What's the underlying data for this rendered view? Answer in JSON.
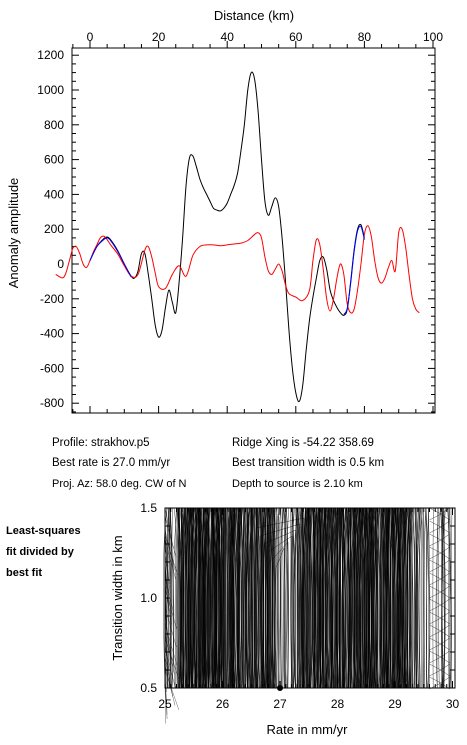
{
  "chart_data": [
    {
      "type": "line",
      "xlabel": "Distance (km)",
      "ylabel": "Anomaly amplitude",
      "xlim": [
        -10,
        100
      ],
      "ylim": [
        -900,
        1250
      ],
      "xticks": [
        0,
        20,
        40,
        60,
        80,
        100
      ],
      "yticks": [
        -800,
        -600,
        -400,
        -200,
        0,
        200,
        400,
        600,
        800,
        1000,
        1200
      ],
      "grid": false,
      "series": [
        {
          "color": "#000000",
          "x": [
            0,
            2,
            4,
            5,
            6,
            8,
            10,
            12,
            13,
            14,
            15,
            16,
            17,
            18,
            19,
            20,
            21,
            22,
            23,
            24,
            25,
            26,
            27,
            28,
            29,
            30,
            31,
            32,
            33,
            34,
            35,
            36,
            37,
            38,
            39,
            40,
            41,
            42,
            43,
            44,
            45,
            46,
            47,
            48,
            49,
            50,
            51,
            52,
            53,
            54,
            55,
            56,
            57,
            58,
            59,
            60,
            61,
            62,
            63,
            64,
            65,
            66,
            67,
            68,
            69,
            70,
            71,
            72,
            73,
            74,
            75,
            76,
            77,
            78,
            79,
            80
          ],
          "y": [
            20,
            100,
            145,
            155,
            140,
            80,
            0,
            -70,
            -80,
            -40,
            60,
            60,
            -60,
            -200,
            -350,
            -420,
            -380,
            -250,
            -150,
            -220,
            -280,
            -100,
            150,
            450,
            610,
            620,
            560,
            490,
            440,
            400,
            360,
            320,
            310,
            305,
            320,
            350,
            400,
            450,
            520,
            650,
            800,
            1000,
            1100,
            1060,
            880,
            600,
            360,
            280,
            330,
            380,
            330,
            150,
            -100,
            -380,
            -600,
            -740,
            -790,
            -700,
            -500,
            -320,
            -190,
            -80,
            20,
            40,
            -30,
            -150,
            -210,
            -250,
            -280,
            -295,
            -260,
            -100,
            80,
            200,
            225,
            150
          ]
        },
        {
          "color": "#ff0000",
          "x": [
            -10,
            -8,
            -7,
            -6,
            -5,
            -4,
            -3,
            -2,
            -1,
            0,
            1,
            2,
            3,
            4,
            5,
            6,
            8,
            10,
            12,
            14,
            16,
            17,
            18,
            19,
            20,
            22,
            24,
            26,
            28,
            30,
            32,
            34,
            36,
            38,
            40,
            42,
            44,
            46,
            48,
            49,
            50,
            51,
            52,
            53,
            54,
            55,
            56,
            57,
            58,
            60,
            62,
            64,
            65,
            66,
            67,
            68,
            69,
            70,
            71,
            72,
            73,
            74,
            75,
            76,
            77,
            78,
            79,
            80,
            81,
            82,
            83,
            84,
            85,
            86,
            87,
            88,
            89,
            90,
            91,
            92,
            93,
            94,
            95,
            96
          ],
          "y": [
            -60,
            -80,
            -50,
            20,
            90,
            100,
            60,
            0,
            -20,
            20,
            70,
            110,
            150,
            160,
            140,
            110,
            60,
            -10,
            -70,
            -60,
            80,
            100,
            40,
            -50,
            -130,
            -140,
            -60,
            -10,
            -70,
            50,
            100,
            110,
            110,
            105,
            110,
            115,
            120,
            135,
            170,
            180,
            150,
            40,
            -40,
            -60,
            -30,
            0,
            -40,
            -120,
            -170,
            -190,
            -210,
            -150,
            20,
            140,
            110,
            -30,
            -200,
            -270,
            -200,
            -80,
            0,
            -60,
            -230,
            -280,
            -260,
            -150,
            0,
            170,
            220,
            160,
            20,
            -80,
            -110,
            -80,
            -20,
            20,
            -40,
            180,
            200,
            100,
            -60,
            -200,
            -260,
            -280
          ]
        },
        {
          "color": "#0000ff",
          "x": [
            0,
            2,
            4,
            5,
            6,
            8,
            10,
            12
          ],
          "y": [
            20,
            100,
            140,
            150,
            135,
            75,
            0,
            -75
          ]
        },
        {
          "color": "#0000ff",
          "x": [
            74,
            75,
            76,
            77,
            78,
            79,
            80
          ],
          "y": [
            -290,
            -255,
            -110,
            70,
            190,
            215,
            140
          ]
        }
      ]
    },
    {
      "type": "heatmap",
      "xlabel": "Rate in mm/yr",
      "ylabel": "Transition width in km",
      "xlim": [
        25,
        30
      ],
      "ylim": [
        0.5,
        1.5
      ],
      "xticks": [
        25,
        26,
        27,
        28,
        29,
        30
      ],
      "yticks": [
        0.5,
        1.0,
        1.5
      ],
      "marker": {
        "x": 27.0,
        "y": 0.5
      }
    }
  ],
  "info": {
    "profile": "Profile: strakhov.p5",
    "best_rate": "Best rate is 27.0 mm/yr",
    "proj_az": "Proj. Az: 58.0 deg. CW of N",
    "ridge_xing": "Ridge Xing is -54.22 358.69",
    "best_width": "Best transition width is 0.5 km",
    "depth": "Depth to source is   2.10 km"
  },
  "side_note": [
    "Least-squares",
    "fit divided by",
    "best fit"
  ]
}
